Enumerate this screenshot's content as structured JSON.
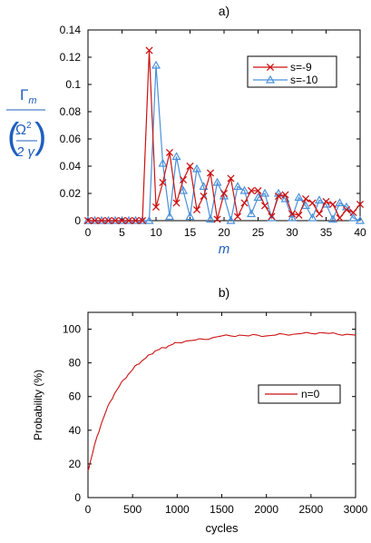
{
  "chart_data": [
    {
      "type": "line",
      "panel_label": "a)",
      "xlabel": "m",
      "ylabel": {
        "numerator": "Γm",
        "denominator": "Ω2/2γ"
      },
      "xlim": [
        0,
        40
      ],
      "ylim": [
        0,
        0.14
      ],
      "xticks": [
        0,
        5,
        10,
        15,
        20,
        25,
        30,
        35,
        40
      ],
      "yticks": [
        0,
        0.02,
        0.04,
        0.06,
        0.08,
        0.1,
        0.12,
        0.14
      ],
      "ytick_labels": [
        "0",
        "0.02",
        "0.04",
        "0.06",
        "0.08",
        "0.1",
        "0.12",
        "0.14"
      ],
      "grid": false,
      "legend_position": "top-right",
      "series": [
        {
          "name": "s=-9",
          "color": "#cc1111",
          "marker": "x",
          "x": [
            0,
            1,
            2,
            3,
            4,
            5,
            6,
            7,
            8,
            9,
            10,
            11,
            12,
            13,
            14,
            15,
            16,
            17,
            18,
            19,
            20,
            21,
            22,
            23,
            24,
            25,
            26,
            27,
            28,
            29,
            30,
            31,
            32,
            33,
            34,
            35,
            36,
            37,
            38,
            39,
            40
          ],
          "y": [
            0,
            0,
            0,
            0,
            0,
            0,
            0,
            0,
            0,
            0.125,
            0.01,
            0.028,
            0.05,
            0.013,
            0.03,
            0.04,
            0.008,
            0.018,
            0.035,
            0.001,
            0.02,
            0.031,
            0.003,
            0.013,
            0.022,
            0.022,
            0.011,
            0.003,
            0.018,
            0.019,
            0.005,
            0.004,
            0.016,
            0.013,
            0.005,
            0.014,
            0.012,
            0.002,
            0.008,
            0.006,
            0.012
          ]
        },
        {
          "name": "s=-10",
          "color": "#4a90d9",
          "marker": "triangle",
          "x": [
            0,
            1,
            2,
            3,
            4,
            5,
            6,
            7,
            8,
            9,
            10,
            11,
            12,
            13,
            14,
            15,
            16,
            17,
            18,
            19,
            20,
            21,
            22,
            23,
            24,
            25,
            26,
            27,
            28,
            29,
            30,
            31,
            32,
            33,
            34,
            35,
            36,
            37,
            38,
            39,
            40
          ],
          "y": [
            0,
            0,
            0,
            0,
            0,
            0,
            0,
            0,
            0,
            0,
            0.114,
            0.042,
            0.003,
            0.047,
            0.022,
            0.003,
            0.038,
            0.025,
            0.001,
            0.028,
            0.018,
            0,
            0.025,
            0.022,
            0.005,
            0.017,
            0.02,
            0.002,
            0.02,
            0.016,
            0.002,
            0.017,
            0.011,
            0.002,
            0.015,
            0.012,
            0.001,
            0.013,
            0.01,
            0.002,
            0
          ]
        }
      ]
    },
    {
      "type": "line",
      "panel_label": "b)",
      "xlabel": "cycles",
      "ylabel": "Probability   (%)",
      "xlim": [
        0,
        3000
      ],
      "ylim": [
        0,
        110
      ],
      "xticks": [
        0,
        500,
        1000,
        1500,
        2000,
        2500,
        3000
      ],
      "yticks": [
        0,
        20,
        40,
        60,
        80,
        100
      ],
      "grid": false,
      "legend_position": "right",
      "series": [
        {
          "name": "n=0",
          "color": "#cc1111",
          "x": [
            0,
            20,
            50,
            100,
            150,
            200,
            250,
            300,
            350,
            400,
            450,
            500,
            550,
            600,
            650,
            700,
            750,
            800,
            850,
            900,
            950,
            1000,
            1100,
            1200,
            1300,
            1400,
            1500,
            1600,
            1700,
            1800,
            1900,
            2000,
            2100,
            2200,
            2300,
            2400,
            2500,
            2600,
            2700,
            2800,
            2900,
            3000
          ],
          "y": [
            16,
            20,
            26,
            36,
            44,
            51,
            57,
            62,
            66,
            70,
            73,
            76,
            79,
            81,
            83,
            85,
            87,
            88,
            89,
            90,
            91,
            92,
            93,
            93.5,
            94,
            95,
            96,
            96,
            96.5,
            96,
            96.5,
            96,
            96.5,
            97,
            97,
            97.5,
            97.5,
            98,
            97.5,
            97,
            97,
            96.5
          ]
        }
      ]
    }
  ]
}
